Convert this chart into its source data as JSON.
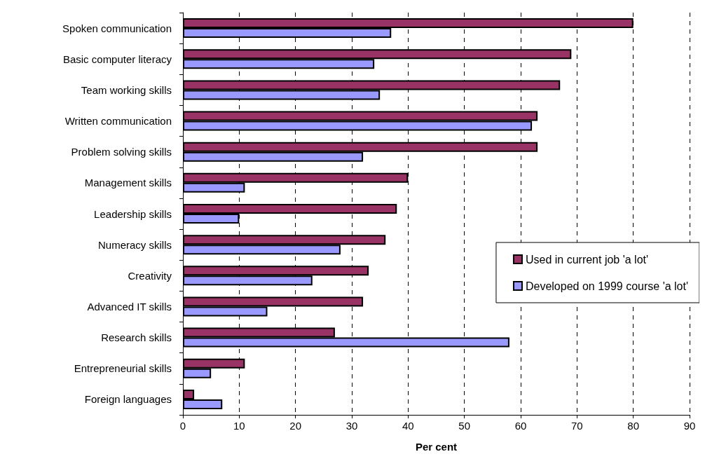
{
  "chart_data": {
    "type": "bar",
    "orientation": "horizontal",
    "xlabel": "Per cent",
    "categories": [
      "Spoken communication",
      "Basic computer literacy",
      "Team working skills",
      "Written communication",
      "Problem solving skills",
      "Management skills",
      "Leadership skills",
      "Numeracy skills",
      "Creativity",
      "Advanced IT skills",
      "Research skills",
      "Entrepreneurial skills",
      "Foreign languages"
    ],
    "series": [
      {
        "name": "Used in current job 'a lot'",
        "color": "#993366",
        "values": [
          80,
          69,
          67,
          63,
          63,
          40,
          38,
          36,
          33,
          32,
          27,
          11,
          2
        ]
      },
      {
        "name": "Developed on 1999 course 'a lot'",
        "color": "#9999ff",
        "values": [
          37,
          34,
          35,
          62,
          32,
          11,
          10,
          28,
          23,
          15,
          58,
          5,
          7
        ]
      }
    ],
    "xlim": [
      0,
      90
    ],
    "xticks": [
      0,
      10,
      20,
      30,
      40,
      50,
      60,
      70,
      80,
      90
    ],
    "grid": "x",
    "legend": "right"
  }
}
